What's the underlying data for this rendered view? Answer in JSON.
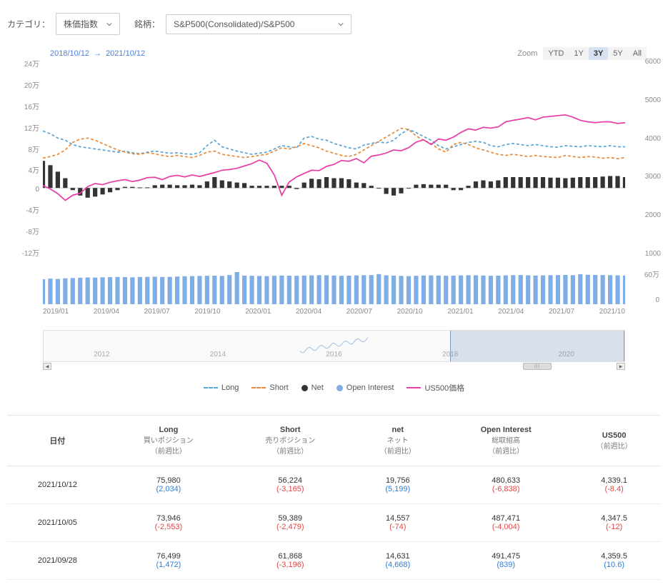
{
  "filters": {
    "category_label": "カテゴリ：",
    "category_value": "株価指数",
    "symbol_label": "銘柄：",
    "symbol_value": "S&P500(Consolidated)/S&P500"
  },
  "daterange": {
    "from": "2018/10/12",
    "arrow": "→",
    "to": "2021/10/12"
  },
  "zoom": {
    "label": "Zoom",
    "options": [
      "YTD",
      "1Y",
      "3Y",
      "5Y",
      "All"
    ],
    "active": "3Y"
  },
  "chart": {
    "type": "combo",
    "left_axis": {
      "ticks": [
        "24万",
        "20万",
        "16万",
        "12万",
        "8万",
        "4万",
        "0",
        "-4万",
        "-8万",
        "-12万"
      ],
      "min": -120000,
      "max": 240000
    },
    "right_axis": {
      "ticks": [
        "6000",
        "",
        "5000",
        "",
        "4000",
        "",
        "3000",
        "",
        "2000",
        "",
        "1000"
      ],
      "min": 1000,
      "max": 6000
    },
    "colors": {
      "long": "#5aa6d6",
      "short": "#e88b3d",
      "net": "#333333",
      "open_interest": "#7eaee5",
      "price": "#e83fa8",
      "grid": "#eeeeee",
      "bg": "#ffffff"
    },
    "x_ticks": [
      "2019/01",
      "2019/04",
      "2019/07",
      "2019/10",
      "2020/01",
      "2020/04",
      "2020/07",
      "2020/10",
      "2021/01",
      "2021/04",
      "2021/07",
      "2021/10"
    ],
    "series": {
      "long": [
        105000,
        100000,
        92000,
        88000,
        80000,
        76000,
        74000,
        72000,
        70000,
        68000,
        66000,
        68000,
        65000,
        63000,
        66000,
        68000,
        66000,
        64000,
        65000,
        63000,
        62000,
        65000,
        78000,
        88000,
        76000,
        72000,
        68000,
        65000,
        62000,
        64000,
        66000,
        72000,
        78000,
        76000,
        74000,
        92000,
        95000,
        90000,
        88000,
        82000,
        78000,
        74000,
        72000,
        79000,
        82000,
        85000,
        83000,
        88000,
        100000,
        108000,
        102000,
        95000,
        88000,
        78000,
        72000,
        76000,
        80000,
        84000,
        86000,
        84000,
        78000,
        76000,
        80000,
        82000,
        80000,
        78000,
        80000,
        78000,
        76000,
        75000,
        78000,
        77000,
        76000,
        78000,
        77000,
        76000,
        78000,
        76000,
        76000
      ],
      "short": [
        55000,
        58000,
        62000,
        70000,
        84000,
        90000,
        92000,
        88000,
        82000,
        76000,
        70000,
        66000,
        63000,
        62000,
        65000,
        63000,
        60000,
        58000,
        60000,
        58000,
        56000,
        60000,
        66000,
        68000,
        62000,
        60000,
        58000,
        56000,
        58000,
        60000,
        62000,
        68000,
        74000,
        72000,
        76000,
        82000,
        78000,
        74000,
        68000,
        64000,
        60000,
        58000,
        62000,
        70000,
        78000,
        86000,
        94000,
        102000,
        110000,
        108000,
        96000,
        88000,
        82000,
        72000,
        66000,
        80000,
        84000,
        80000,
        74000,
        70000,
        66000,
        62000,
        60000,
        62000,
        60000,
        58000,
        60000,
        58000,
        57000,
        56000,
        60000,
        58000,
        56000,
        58000,
        57000,
        55000,
        56000,
        54000,
        56000
      ],
      "net": [
        50000,
        42000,
        30000,
        18000,
        -4000,
        -14000,
        -18000,
        -16000,
        -12000,
        -8000,
        -4000,
        2000,
        2000,
        1000,
        1000,
        5000,
        6000,
        6000,
        5000,
        5000,
        6000,
        5000,
        12000,
        20000,
        14000,
        12000,
        10000,
        9000,
        4000,
        4000,
        4000,
        4000,
        4000,
        4000,
        -2000,
        10000,
        17000,
        16000,
        20000,
        18000,
        18000,
        16000,
        10000,
        9000,
        4000,
        -1000,
        -11000,
        -14000,
        -10000,
        0,
        6000,
        7000,
        6000,
        6000,
        6000,
        -4000,
        -4000,
        4000,
        12000,
        14000,
        12000,
        14000,
        20000,
        20000,
        20000,
        20000,
        20000,
        20000,
        19000,
        19000,
        18000,
        19000,
        20000,
        20000,
        20000,
        21000,
        22000,
        22000,
        20000
      ],
      "open_interest": [
        420000,
        430000,
        425000,
        435000,
        440000,
        445000,
        450000,
        448000,
        452000,
        455000,
        458000,
        455000,
        452000,
        458000,
        460000,
        462000,
        458000,
        460000,
        465000,
        470000,
        472000,
        475000,
        478000,
        480000,
        476000,
        490000,
        540000,
        480000,
        478000,
        475000,
        472000,
        478000,
        482000,
        480000,
        478000,
        482000,
        485000,
        488000,
        486000,
        482000,
        478000,
        480000,
        485000,
        488000,
        490000,
        506000,
        486000,
        480000,
        476000,
        472000,
        478000,
        482000,
        485000,
        482000,
        478000,
        480000,
        485000,
        488000,
        486000,
        482000,
        478000,
        480000,
        485000,
        488000,
        490000,
        486000,
        482000,
        485000,
        488000,
        490000,
        492000,
        488000,
        504000,
        495000,
        492000,
        490000,
        488000,
        485000,
        481000
      ],
      "price": [
        2730,
        2640,
        2520,
        2350,
        2480,
        2530,
        2700,
        2780,
        2750,
        2810,
        2850,
        2880,
        2830,
        2870,
        2930,
        2940,
        2880,
        2960,
        2990,
        2950,
        3000,
        2960,
        3010,
        3060,
        3120,
        3140,
        3170,
        3230,
        3290,
        3380,
        3300,
        3000,
        2480,
        2820,
        2950,
        3040,
        3120,
        3110,
        3220,
        3270,
        3370,
        3350,
        3420,
        3310,
        3480,
        3510,
        3560,
        3640,
        3620,
        3700,
        3840,
        3900,
        3780,
        3920,
        3890,
        3970,
        4090,
        4180,
        4150,
        4220,
        4200,
        4230,
        4360,
        4400,
        4430,
        4470,
        4410,
        4480,
        4500,
        4520,
        4540,
        4480,
        4400,
        4360,
        4340,
        4360,
        4360,
        4320,
        4339
      ],
      "oi_max": 600000
    },
    "volume_axis": {
      "ticks": [
        "60万",
        "0"
      ]
    },
    "navigator": {
      "ticks": [
        "2012",
        "2014",
        "2016",
        "2018",
        "2020"
      ],
      "sel_from_pct": 70,
      "sel_to_pct": 100
    }
  },
  "legend": [
    {
      "type": "dash",
      "color": "#5aa6d6",
      "label": "Long"
    },
    {
      "type": "dash",
      "color": "#e88b3d",
      "label": "Short"
    },
    {
      "type": "circle",
      "color": "#333333",
      "label": "Net"
    },
    {
      "type": "circle",
      "color": "#7eaee5",
      "label": "Open Interest"
    },
    {
      "type": "solid",
      "color": "#e83fa8",
      "label": "US500価格"
    }
  ],
  "table": {
    "columns": [
      {
        "main": "日付",
        "sub": ""
      },
      {
        "main": "Long",
        "sub": "買いポジション\n（前週比）"
      },
      {
        "main": "Short",
        "sub": "売りポジション\n（前週比）"
      },
      {
        "main": "net",
        "sub": "ネット\n（前週比）"
      },
      {
        "main": "Open Interest",
        "sub": "総取組高\n（前週比）"
      },
      {
        "main": "US500",
        "sub": "（前週比）"
      }
    ],
    "rows": [
      {
        "date": "2021/10/12",
        "cells": [
          {
            "v": "75,980",
            "d": "(2,034)",
            "dir": "up"
          },
          {
            "v": "56,224",
            "d": "(-3,165)",
            "dir": "down"
          },
          {
            "v": "19,756",
            "d": "(5,199)",
            "dir": "up"
          },
          {
            "v": "480,633",
            "d": "(-6,838)",
            "dir": "down"
          },
          {
            "v": "4,339.1",
            "d": "(-8.4)",
            "dir": "down"
          }
        ]
      },
      {
        "date": "2021/10/05",
        "cells": [
          {
            "v": "73,946",
            "d": "(-2,553)",
            "dir": "down"
          },
          {
            "v": "59,389",
            "d": "(-2,479)",
            "dir": "down"
          },
          {
            "v": "14,557",
            "d": "(-74)",
            "dir": "down"
          },
          {
            "v": "487,471",
            "d": "(-4,004)",
            "dir": "down"
          },
          {
            "v": "4,347.5",
            "d": "(-12)",
            "dir": "down"
          }
        ]
      },
      {
        "date": "2021/09/28",
        "cells": [
          {
            "v": "76,499",
            "d": "(1,472)",
            "dir": "up"
          },
          {
            "v": "61,868",
            "d": "(-3,196)",
            "dir": "down"
          },
          {
            "v": "14,631",
            "d": "(4,668)",
            "dir": "up"
          },
          {
            "v": "491,475",
            "d": "(839)",
            "dir": "up"
          },
          {
            "v": "4,359.5",
            "d": "(10.6)",
            "dir": "up"
          }
        ]
      }
    ]
  }
}
